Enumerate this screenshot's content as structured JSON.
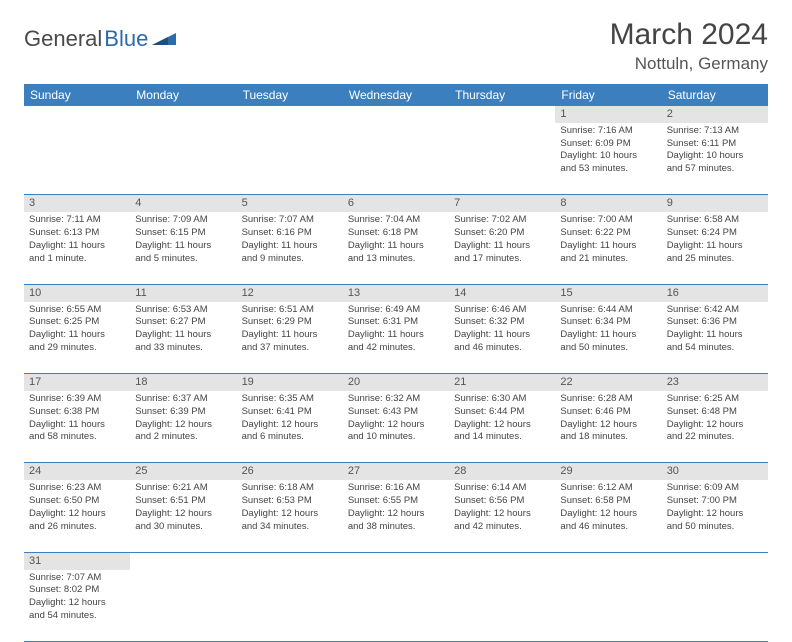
{
  "brand": {
    "part1": "General",
    "part2": "Blue"
  },
  "title": "March 2024",
  "location": "Nottuln, Germany",
  "colors": {
    "header_bg": "#3b7fbf",
    "header_text": "#ffffff",
    "daynum_bg": "#e4e4e4",
    "row_border": "#3b7fbf",
    "body_text": "#444444",
    "brand_gray": "#4a4a4a",
    "brand_blue": "#2d6aa8"
  },
  "weekdays": [
    "Sunday",
    "Monday",
    "Tuesday",
    "Wednesday",
    "Thursday",
    "Friday",
    "Saturday"
  ],
  "weeks": [
    [
      null,
      null,
      null,
      null,
      null,
      {
        "n": "1",
        "sr": "Sunrise: 7:16 AM",
        "ss": "Sunset: 6:09 PM",
        "dl1": "Daylight: 10 hours",
        "dl2": "and 53 minutes."
      },
      {
        "n": "2",
        "sr": "Sunrise: 7:13 AM",
        "ss": "Sunset: 6:11 PM",
        "dl1": "Daylight: 10 hours",
        "dl2": "and 57 minutes."
      }
    ],
    [
      {
        "n": "3",
        "sr": "Sunrise: 7:11 AM",
        "ss": "Sunset: 6:13 PM",
        "dl1": "Daylight: 11 hours",
        "dl2": "and 1 minute."
      },
      {
        "n": "4",
        "sr": "Sunrise: 7:09 AM",
        "ss": "Sunset: 6:15 PM",
        "dl1": "Daylight: 11 hours",
        "dl2": "and 5 minutes."
      },
      {
        "n": "5",
        "sr": "Sunrise: 7:07 AM",
        "ss": "Sunset: 6:16 PM",
        "dl1": "Daylight: 11 hours",
        "dl2": "and 9 minutes."
      },
      {
        "n": "6",
        "sr": "Sunrise: 7:04 AM",
        "ss": "Sunset: 6:18 PM",
        "dl1": "Daylight: 11 hours",
        "dl2": "and 13 minutes."
      },
      {
        "n": "7",
        "sr": "Sunrise: 7:02 AM",
        "ss": "Sunset: 6:20 PM",
        "dl1": "Daylight: 11 hours",
        "dl2": "and 17 minutes."
      },
      {
        "n": "8",
        "sr": "Sunrise: 7:00 AM",
        "ss": "Sunset: 6:22 PM",
        "dl1": "Daylight: 11 hours",
        "dl2": "and 21 minutes."
      },
      {
        "n": "9",
        "sr": "Sunrise: 6:58 AM",
        "ss": "Sunset: 6:24 PM",
        "dl1": "Daylight: 11 hours",
        "dl2": "and 25 minutes."
      }
    ],
    [
      {
        "n": "10",
        "sr": "Sunrise: 6:55 AM",
        "ss": "Sunset: 6:25 PM",
        "dl1": "Daylight: 11 hours",
        "dl2": "and 29 minutes."
      },
      {
        "n": "11",
        "sr": "Sunrise: 6:53 AM",
        "ss": "Sunset: 6:27 PM",
        "dl1": "Daylight: 11 hours",
        "dl2": "and 33 minutes."
      },
      {
        "n": "12",
        "sr": "Sunrise: 6:51 AM",
        "ss": "Sunset: 6:29 PM",
        "dl1": "Daylight: 11 hours",
        "dl2": "and 37 minutes."
      },
      {
        "n": "13",
        "sr": "Sunrise: 6:49 AM",
        "ss": "Sunset: 6:31 PM",
        "dl1": "Daylight: 11 hours",
        "dl2": "and 42 minutes."
      },
      {
        "n": "14",
        "sr": "Sunrise: 6:46 AM",
        "ss": "Sunset: 6:32 PM",
        "dl1": "Daylight: 11 hours",
        "dl2": "and 46 minutes."
      },
      {
        "n": "15",
        "sr": "Sunrise: 6:44 AM",
        "ss": "Sunset: 6:34 PM",
        "dl1": "Daylight: 11 hours",
        "dl2": "and 50 minutes."
      },
      {
        "n": "16",
        "sr": "Sunrise: 6:42 AM",
        "ss": "Sunset: 6:36 PM",
        "dl1": "Daylight: 11 hours",
        "dl2": "and 54 minutes."
      }
    ],
    [
      {
        "n": "17",
        "sr": "Sunrise: 6:39 AM",
        "ss": "Sunset: 6:38 PM",
        "dl1": "Daylight: 11 hours",
        "dl2": "and 58 minutes."
      },
      {
        "n": "18",
        "sr": "Sunrise: 6:37 AM",
        "ss": "Sunset: 6:39 PM",
        "dl1": "Daylight: 12 hours",
        "dl2": "and 2 minutes."
      },
      {
        "n": "19",
        "sr": "Sunrise: 6:35 AM",
        "ss": "Sunset: 6:41 PM",
        "dl1": "Daylight: 12 hours",
        "dl2": "and 6 minutes."
      },
      {
        "n": "20",
        "sr": "Sunrise: 6:32 AM",
        "ss": "Sunset: 6:43 PM",
        "dl1": "Daylight: 12 hours",
        "dl2": "and 10 minutes."
      },
      {
        "n": "21",
        "sr": "Sunrise: 6:30 AM",
        "ss": "Sunset: 6:44 PM",
        "dl1": "Daylight: 12 hours",
        "dl2": "and 14 minutes."
      },
      {
        "n": "22",
        "sr": "Sunrise: 6:28 AM",
        "ss": "Sunset: 6:46 PM",
        "dl1": "Daylight: 12 hours",
        "dl2": "and 18 minutes."
      },
      {
        "n": "23",
        "sr": "Sunrise: 6:25 AM",
        "ss": "Sunset: 6:48 PM",
        "dl1": "Daylight: 12 hours",
        "dl2": "and 22 minutes."
      }
    ],
    [
      {
        "n": "24",
        "sr": "Sunrise: 6:23 AM",
        "ss": "Sunset: 6:50 PM",
        "dl1": "Daylight: 12 hours",
        "dl2": "and 26 minutes."
      },
      {
        "n": "25",
        "sr": "Sunrise: 6:21 AM",
        "ss": "Sunset: 6:51 PM",
        "dl1": "Daylight: 12 hours",
        "dl2": "and 30 minutes."
      },
      {
        "n": "26",
        "sr": "Sunrise: 6:18 AM",
        "ss": "Sunset: 6:53 PM",
        "dl1": "Daylight: 12 hours",
        "dl2": "and 34 minutes."
      },
      {
        "n": "27",
        "sr": "Sunrise: 6:16 AM",
        "ss": "Sunset: 6:55 PM",
        "dl1": "Daylight: 12 hours",
        "dl2": "and 38 minutes."
      },
      {
        "n": "28",
        "sr": "Sunrise: 6:14 AM",
        "ss": "Sunset: 6:56 PM",
        "dl1": "Daylight: 12 hours",
        "dl2": "and 42 minutes."
      },
      {
        "n": "29",
        "sr": "Sunrise: 6:12 AM",
        "ss": "Sunset: 6:58 PM",
        "dl1": "Daylight: 12 hours",
        "dl2": "and 46 minutes."
      },
      {
        "n": "30",
        "sr": "Sunrise: 6:09 AM",
        "ss": "Sunset: 7:00 PM",
        "dl1": "Daylight: 12 hours",
        "dl2": "and 50 minutes."
      }
    ],
    [
      {
        "n": "31",
        "sr": "Sunrise: 7:07 AM",
        "ss": "Sunset: 8:02 PM",
        "dl1": "Daylight: 12 hours",
        "dl2": "and 54 minutes."
      },
      null,
      null,
      null,
      null,
      null,
      null
    ]
  ]
}
